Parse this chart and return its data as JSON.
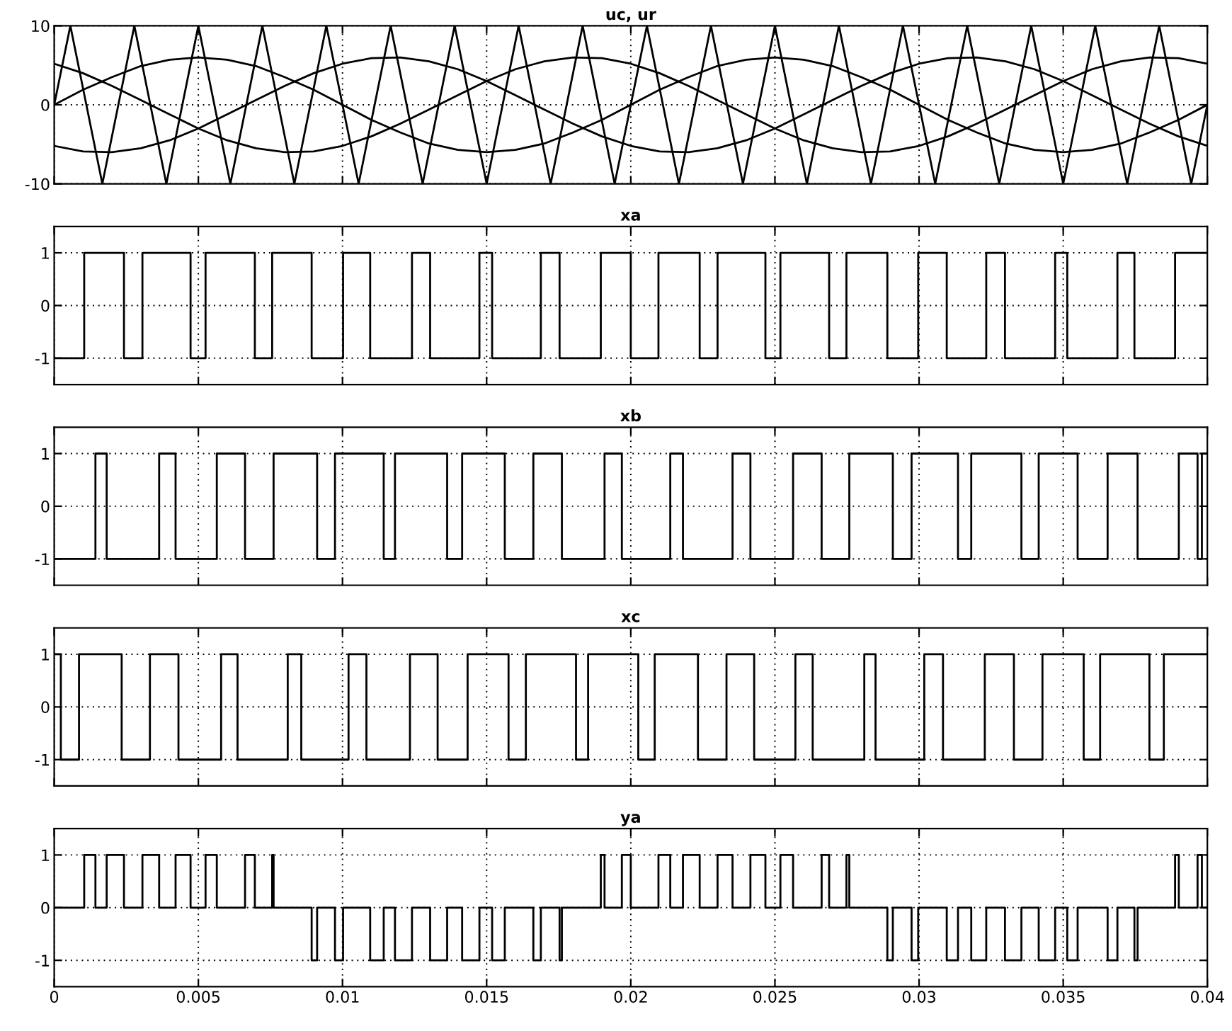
{
  "chart_data": [
    {
      "type": "line",
      "title": "uc, ur",
      "xlim": [
        0,
        0.04
      ],
      "xticks": [
        0,
        0.005,
        0.01,
        0.015,
        0.02,
        0.025,
        0.03,
        0.035,
        0.04
      ],
      "ylim": [
        -10,
        10
      ],
      "yticks": [
        -10,
        0,
        10
      ],
      "grid": true,
      "tick_labels": "y",
      "line_style": "solid",
      "series": [
        {
          "color": "#000000",
          "x": [
            0,
            0.00056,
            0.00167,
            0.00278,
            0.00389,
            0.005,
            0.00611,
            0.00722,
            0.00833,
            0.00944,
            0.01056,
            0.01167,
            0.01278,
            0.01389,
            0.015,
            0.01611,
            0.01722,
            0.01833,
            0.01944,
            0.02056,
            0.02167,
            0.02278,
            0.02389,
            0.025,
            0.02611,
            0.02722,
            0.02833,
            0.02944,
            0.03056,
            0.03167,
            0.03278,
            0.03389,
            0.035,
            0.03611,
            0.03722,
            0.03833,
            0.03944,
            0.04
          ],
          "values": [
            0,
            10,
            -10,
            10,
            -10,
            10,
            -10,
            10,
            -10,
            10,
            -10,
            10,
            -10,
            10,
            -10,
            10,
            -10,
            10,
            -10,
            10,
            -10,
            10,
            -10,
            10,
            -10,
            10,
            -10,
            10,
            -10,
            10,
            -10,
            10,
            -10,
            10,
            -10,
            10,
            -10,
            0
          ]
        },
        {
          "color": "#000000",
          "x": [
            0,
            0.001,
            0.002,
            0.003,
            0.004,
            0.005,
            0.006,
            0.007,
            0.008,
            0.009,
            0.01,
            0.011,
            0.012,
            0.013,
            0.014,
            0.015,
            0.016,
            0.017,
            0.018,
            0.019,
            0.02,
            0.021,
            0.022,
            0.023,
            0.024,
            0.025,
            0.026,
            0.027,
            0.028,
            0.029,
            0.03,
            0.031,
            0.032,
            0.033,
            0.034,
            0.035,
            0.036,
            0.037,
            0.038,
            0.039,
            0.04
          ],
          "values": [
            0,
            1.9,
            3.5,
            4.9,
            5.7,
            6,
            5.7,
            4.9,
            3.5,
            1.9,
            0,
            -1.9,
            -3.5,
            -4.9,
            -5.7,
            -6,
            -5.7,
            -4.9,
            -3.5,
            -1.9,
            0,
            1.9,
            3.5,
            4.9,
            5.7,
            6,
            5.7,
            4.9,
            3.5,
            1.9,
            0,
            -1.9,
            -3.5,
            -4.9,
            -5.7,
            -6,
            -5.7,
            -4.9,
            -3.5,
            -1.9,
            0
          ]
        },
        {
          "color": "#000000",
          "x": [
            0,
            0.001,
            0.002,
            0.003,
            0.004,
            0.005,
            0.006,
            0.007,
            0.008,
            0.009,
            0.01,
            0.011,
            0.012,
            0.013,
            0.014,
            0.015,
            0.016,
            0.017,
            0.018,
            0.019,
            0.02,
            0.021,
            0.022,
            0.023,
            0.024,
            0.025,
            0.026,
            0.027,
            0.028,
            0.029,
            0.03,
            0.031,
            0.032,
            0.033,
            0.034,
            0.035,
            0.036,
            0.037,
            0.038,
            0.039,
            0.04
          ],
          "values": [
            -5.2,
            -5.9,
            -6,
            -5.5,
            -4.5,
            -3,
            -1.2,
            0.6,
            2.4,
            4,
            5.2,
            5.9,
            6,
            5.5,
            4.5,
            3,
            1.2,
            -0.6,
            -2.4,
            -4,
            -5.2,
            -5.9,
            -6,
            -5.5,
            -4.5,
            -3,
            -1.2,
            0.6,
            2.4,
            4,
            5.2,
            5.9,
            6,
            5.5,
            4.5,
            3,
            1.2,
            -0.6,
            -2.4,
            -4,
            -5.2
          ]
        },
        {
          "color": "#000000",
          "x": [
            0,
            0.001,
            0.002,
            0.003,
            0.004,
            0.005,
            0.006,
            0.007,
            0.008,
            0.009,
            0.01,
            0.011,
            0.012,
            0.013,
            0.014,
            0.015,
            0.016,
            0.017,
            0.018,
            0.019,
            0.02,
            0.021,
            0.022,
            0.023,
            0.024,
            0.025,
            0.026,
            0.027,
            0.028,
            0.029,
            0.03,
            0.031,
            0.032,
            0.033,
            0.034,
            0.035,
            0.036,
            0.037,
            0.038,
            0.039,
            0.04
          ],
          "values": [
            5.2,
            4,
            2.4,
            0.6,
            -1.2,
            -3,
            -4.5,
            -5.5,
            -6,
            -5.9,
            -5.2,
            -4,
            -2.4,
            -0.6,
            1.2,
            3,
            4.5,
            5.5,
            6,
            5.9,
            5.2,
            4,
            2.4,
            0.6,
            -1.2,
            -3,
            -4.5,
            -5.5,
            -6,
            -5.9,
            -5.2,
            -4,
            -2.4,
            -0.6,
            1.2,
            3,
            4.5,
            5.5,
            6,
            5.9,
            5.2
          ]
        }
      ]
    },
    {
      "type": "step",
      "title": "xa",
      "xlim": [
        0,
        0.04
      ],
      "xticks": [
        0,
        0.005,
        0.01,
        0.015,
        0.02,
        0.025,
        0.03,
        0.035,
        0.04
      ],
      "ylim": [
        -1.5,
        1.5
      ],
      "yticks": [
        -1,
        0,
        1
      ],
      "grid": true,
      "tick_labels": "y",
      "series": [
        {
          "color": "#000000",
          "x": [
            0,
            0.00104,
            0.00242,
            0.00306,
            0.00473,
            0.00525,
            0.00696,
            0.00756,
            0.00893,
            0.01002,
            0.01096,
            0.01241,
            0.01304,
            0.01475,
            0.01519,
            0.01688,
            0.01753,
            0.01896,
            0.02,
            0.02096,
            0.02239,
            0.02301,
            0.02467,
            0.02519,
            0.02688,
            0.02748,
            0.0289,
            0.02997,
            0.03096,
            0.03233,
            0.03298,
            0.03472,
            0.03514,
            0.03688,
            0.03747,
            0.03888,
            0.04
          ],
          "values": [
            -1,
            1,
            -1,
            1,
            -1,
            1,
            -1,
            1,
            -1,
            1,
            -1,
            1,
            -1,
            1,
            -1,
            1,
            -1,
            1,
            -1,
            1,
            -1,
            1,
            -1,
            1,
            -1,
            1,
            -1,
            1,
            -1,
            1,
            -1,
            1,
            -1,
            1,
            -1,
            1,
            1
          ]
        }
      ]
    },
    {
      "type": "step",
      "title": "xb",
      "xlim": [
        0,
        0.04
      ],
      "xticks": [
        0,
        0.005,
        0.01,
        0.015,
        0.02,
        0.025,
        0.03,
        0.035,
        0.04
      ],
      "ylim": [
        -1.5,
        1.5
      ],
      "yticks": [
        -1,
        0,
        1
      ],
      "grid": true,
      "tick_labels": "y",
      "series": [
        {
          "color": "#000000",
          "x": [
            0,
            0.00143,
            0.00182,
            0.00364,
            0.00421,
            0.00564,
            0.00662,
            0.00761,
            0.00912,
            0.00974,
            0.01143,
            0.01182,
            0.01363,
            0.01415,
            0.01563,
            0.01662,
            0.01761,
            0.01909,
            0.01969,
            0.02137,
            0.02181,
            0.02353,
            0.02415,
            0.02563,
            0.02662,
            0.02758,
            0.02909,
            0.02974,
            0.03135,
            0.03181,
            0.03355,
            0.03415,
            0.0355,
            0.03654,
            0.03758,
            0.03901,
            0.03966,
            0.03981,
            0.04
          ],
          "values": [
            -1,
            1,
            -1,
            1,
            -1,
            1,
            -1,
            1,
            -1,
            1,
            -1,
            1,
            -1,
            1,
            -1,
            1,
            -1,
            1,
            -1,
            1,
            -1,
            1,
            -1,
            1,
            -1,
            1,
            -1,
            1,
            -1,
            1,
            -1,
            1,
            -1,
            1,
            -1,
            1,
            -1,
            1,
            1
          ]
        }
      ]
    },
    {
      "type": "step",
      "title": "xc",
      "xlim": [
        0,
        0.04
      ],
      "xticks": [
        0,
        0.005,
        0.01,
        0.015,
        0.02,
        0.025,
        0.03,
        0.035,
        0.04
      ],
      "ylim": [
        -1.5,
        1.5
      ],
      "yticks": [
        -1,
        0,
        1
      ],
      "grid": true,
      "tick_labels": "y",
      "series": [
        {
          "color": "#000000",
          "x": [
            0,
            0.00023,
            0.00086,
            0.00234,
            0.00332,
            0.00431,
            0.00579,
            0.00636,
            0.0081,
            0.00857,
            0.01021,
            0.01083,
            0.01234,
            0.0133,
            0.01434,
            0.01576,
            0.01636,
            0.0181,
            0.01852,
            0.02026,
            0.02083,
            0.02233,
            0.02332,
            0.02428,
            0.02571,
            0.02631,
            0.0281,
            0.02849,
            0.03018,
            0.03083,
            0.03228,
            0.03329,
            0.03428,
            0.03571,
            0.03628,
            0.03799,
            0.03849,
            0.04
          ],
          "values": [
            1,
            -1,
            1,
            -1,
            1,
            -1,
            1,
            -1,
            1,
            -1,
            1,
            -1,
            1,
            -1,
            1,
            -1,
            1,
            -1,
            1,
            -1,
            1,
            -1,
            1,
            -1,
            1,
            -1,
            1,
            -1,
            1,
            -1,
            1,
            -1,
            1,
            -1,
            1,
            -1,
            1,
            1
          ]
        }
      ]
    },
    {
      "type": "step",
      "title": "ya",
      "xlim": [
        0,
        0.04
      ],
      "xticks": [
        0,
        0.005,
        0.01,
        0.015,
        0.02,
        0.025,
        0.03,
        0.035,
        0.04
      ],
      "ylim": [
        -1.5,
        1.5
      ],
      "yticks": [
        -1,
        0,
        1
      ],
      "grid": true,
      "series": [
        {
          "color": "#000000",
          "x": [
            0,
            0.00104,
            0.00143,
            0.00182,
            0.00242,
            0.00306,
            0.00364,
            0.00421,
            0.00473,
            0.00525,
            0.00564,
            0.00662,
            0.00696,
            0.00756,
            0.00761,
            0.00893,
            0.00912,
            0.00974,
            0.01002,
            0.01096,
            0.01143,
            0.01182,
            0.01241,
            0.01304,
            0.01363,
            0.01415,
            0.01475,
            0.01519,
            0.01563,
            0.01662,
            0.01688,
            0.01753,
            0.01761,
            0.01896,
            0.01909,
            0.01969,
            0.02,
            0.02096,
            0.02137,
            0.02181,
            0.02239,
            0.02301,
            0.02353,
            0.02415,
            0.02467,
            0.02519,
            0.02563,
            0.02662,
            0.02688,
            0.02748,
            0.02758,
            0.0289,
            0.02909,
            0.02974,
            0.02997,
            0.03096,
            0.03135,
            0.03181,
            0.03233,
            0.03298,
            0.03355,
            0.03415,
            0.03472,
            0.03514,
            0.0355,
            0.03654,
            0.03688,
            0.03747,
            0.03758,
            0.03888,
            0.03901,
            0.03966,
            0.03981,
            0.04
          ],
          "values": [
            0,
            1,
            0,
            1,
            0,
            1,
            0,
            1,
            0,
            1,
            0,
            1,
            0,
            1,
            0,
            -1,
            0,
            -1,
            0,
            -1,
            0,
            -1,
            0,
            -1,
            0,
            -1,
            0,
            -1,
            0,
            -1,
            0,
            -1,
            0,
            1,
            0,
            1,
            0,
            1,
            0,
            1,
            0,
            1,
            0,
            1,
            0,
            1,
            0,
            1,
            0,
            1,
            0,
            -1,
            0,
            -1,
            0,
            -1,
            0,
            -1,
            0,
            -1,
            0,
            -1,
            0,
            -1,
            0,
            -1,
            0,
            -1,
            0,
            1,
            0,
            1,
            0,
            0
          ]
        }
      ]
    }
  ]
}
